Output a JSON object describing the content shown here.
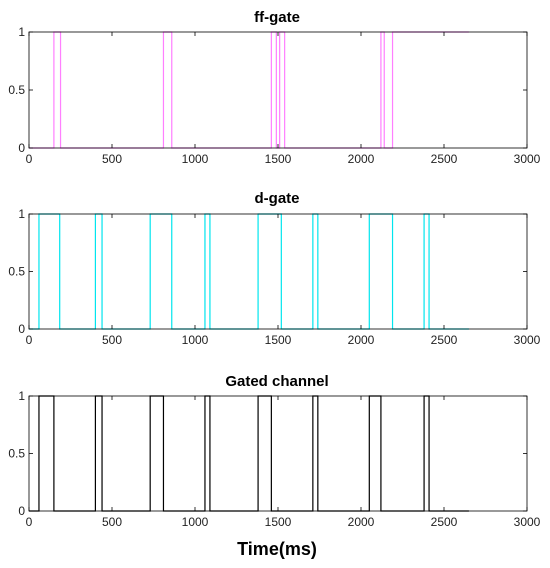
{
  "chart_data": [
    {
      "type": "line",
      "title": "ff-gate",
      "xlim": [
        0,
        3000
      ],
      "ylim": [
        0,
        1
      ],
      "xticks": [
        0,
        500,
        1000,
        1500,
        2000,
        2500,
        3000
      ],
      "yticks": [
        0,
        0.5,
        1
      ],
      "grid": false,
      "color": "#ff7fff",
      "series": [
        {
          "x": [
            0,
            150,
            150,
            190,
            190,
            810,
            810,
            860,
            860,
            1460,
            1460,
            1490,
            1490,
            1510,
            1510,
            1540,
            1540,
            2120,
            2120,
            2140,
            2140,
            2190,
            2190,
            2650
          ],
          "y": [
            0,
            0,
            1,
            1,
            0,
            0,
            1,
            1,
            0,
            0,
            1,
            1,
            0,
            0,
            1,
            1,
            0,
            0,
            1,
            1,
            0,
            0,
            1,
            1
          ]
        }
      ]
    },
    {
      "type": "line",
      "title": "d-gate",
      "xlim": [
        0,
        3000
      ],
      "ylim": [
        0,
        1
      ],
      "xticks": [
        0,
        500,
        1000,
        1500,
        2000,
        2500,
        3000
      ],
      "yticks": [
        0,
        0.5,
        1
      ],
      "grid": false,
      "color": "#00e5ee",
      "series": [
        {
          "x": [
            0,
            60,
            60,
            185,
            185,
            400,
            400,
            440,
            440,
            730,
            730,
            860,
            860,
            1060,
            1060,
            1090,
            1090,
            1380,
            1380,
            1520,
            1520,
            1710,
            1710,
            1740,
            1740,
            2050,
            2050,
            2190,
            2190,
            2380,
            2380,
            2410,
            2410,
            2650
          ],
          "y": [
            0,
            0,
            1,
            1,
            0,
            0,
            1,
            1,
            0,
            0,
            1,
            1,
            0,
            0,
            1,
            1,
            0,
            0,
            1,
            1,
            0,
            0,
            1,
            1,
            0,
            0,
            1,
            1,
            0,
            0,
            1,
            1,
            0,
            0
          ]
        }
      ]
    },
    {
      "type": "line",
      "title": "Gated channel",
      "xlabel": "Time(ms)",
      "xlim": [
        0,
        3000
      ],
      "ylim": [
        0,
        1
      ],
      "xticks": [
        0,
        500,
        1000,
        1500,
        2000,
        2500,
        3000
      ],
      "yticks": [
        0,
        0.5,
        1
      ],
      "grid": false,
      "color": "#000000",
      "series": [
        {
          "x": [
            0,
            60,
            60,
            150,
            150,
            400,
            400,
            440,
            440,
            730,
            730,
            810,
            810,
            1060,
            1060,
            1090,
            1090,
            1380,
            1380,
            1460,
            1460,
            1710,
            1710,
            1740,
            1740,
            2050,
            2050,
            2120,
            2120,
            2380,
            2380,
            2410,
            2410,
            2650
          ],
          "y": [
            0,
            0,
            1,
            1,
            0,
            0,
            1,
            1,
            0,
            0,
            1,
            1,
            0,
            0,
            1,
            1,
            0,
            0,
            1,
            1,
            0,
            0,
            1,
            1,
            0,
            0,
            1,
            1,
            0,
            0,
            1,
            1,
            0,
            0
          ]
        }
      ]
    }
  ]
}
